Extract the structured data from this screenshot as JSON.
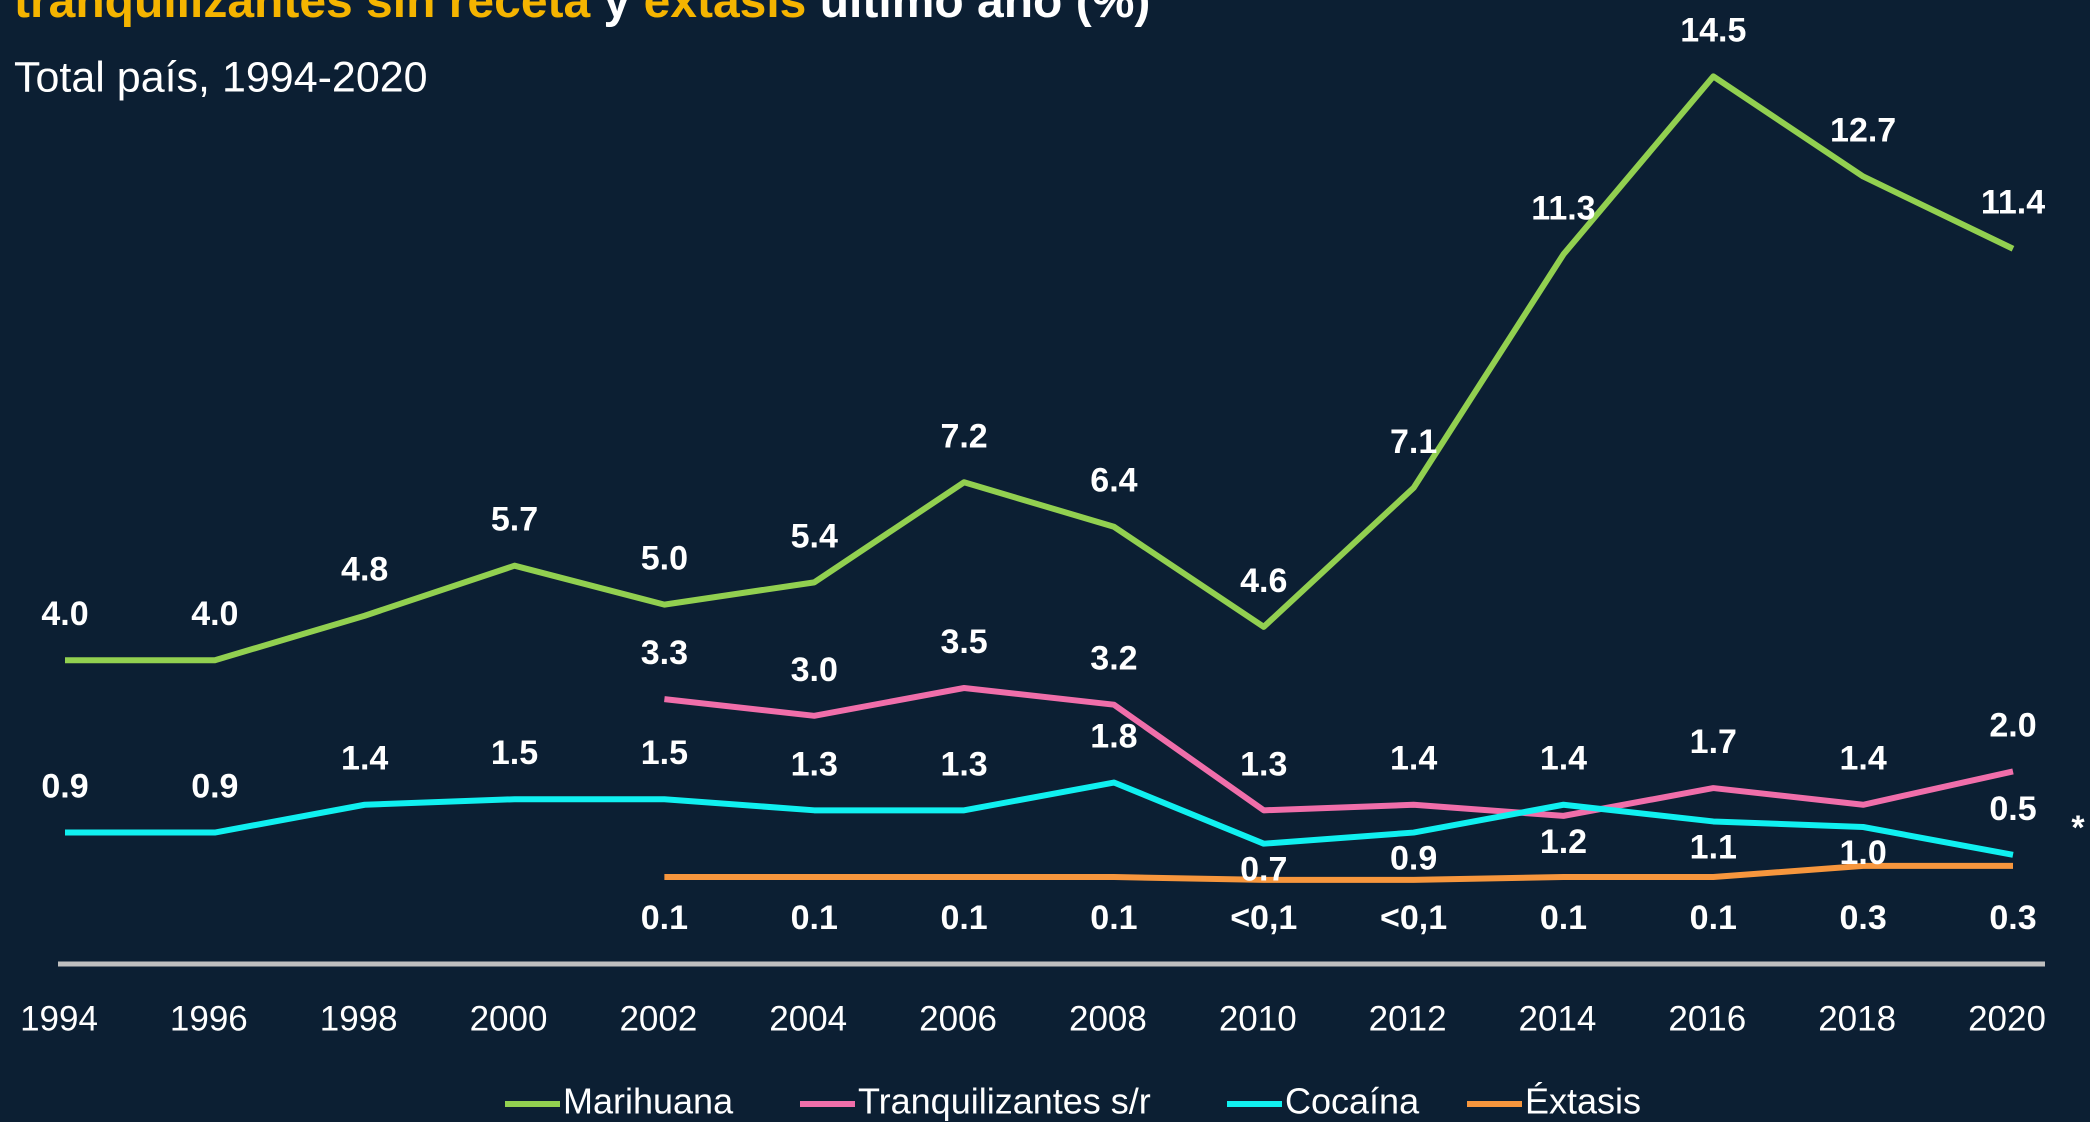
{
  "chart_data": {
    "type": "line",
    "title_parts": [
      {
        "text": "tranquilizantes sin receta",
        "color": "#f5b400"
      },
      {
        "text": "y",
        "color": "#ffffff"
      },
      {
        "text": "éxtasis",
        "color": "#f5b400"
      },
      {
        "text": "último año (%)",
        "color": "#ffffff"
      }
    ],
    "subtitle": "Total país, 1994-2020",
    "x": [
      1994,
      1996,
      1998,
      2000,
      2002,
      2004,
      2006,
      2008,
      2010,
      2012,
      2014,
      2016,
      2018,
      2020
    ],
    "xlim": [
      1994,
      2020
    ],
    "ylim": [
      -1.5,
      16
    ],
    "series": [
      {
        "name": "Marihuana",
        "color": "#92d050",
        "values": [
          4.0,
          4.0,
          4.8,
          5.7,
          5.0,
          5.4,
          7.2,
          6.4,
          4.6,
          7.1,
          11.3,
          14.5,
          12.7,
          11.4
        ],
        "value_labels": [
          "4.0",
          "4.0",
          "4.8",
          "5.7",
          "5.0",
          "5.4",
          "7.2",
          "6.4",
          "4.6",
          "7.1",
          "11.3",
          "14.5",
          "12.7",
          "11.4"
        ]
      },
      {
        "name": "Tranquilizantes s/r",
        "color": "#f06eaa",
        "values": [
          null,
          null,
          null,
          null,
          3.3,
          3.0,
          3.5,
          3.2,
          1.3,
          1.4,
          1.2,
          1.7,
          1.4,
          2.0
        ],
        "value_labels": [
          null,
          null,
          null,
          null,
          "3.3",
          "3.0",
          "3.5",
          "3.2",
          "1.3",
          "1.4",
          "1.2",
          "1.7",
          "1.4",
          "2.0"
        ]
      },
      {
        "name": "Cocaína",
        "color": "#10f0f0",
        "values": [
          0.9,
          0.9,
          1.4,
          1.5,
          1.5,
          1.3,
          1.3,
          1.8,
          0.7,
          0.9,
          1.4,
          1.1,
          1.0,
          0.5
        ],
        "value_labels": [
          "0.9",
          "0.9",
          "1.4",
          "1.5",
          "1.5",
          "1.3",
          "1.3",
          "1.8",
          "0.7",
          "0.9",
          "1.4",
          "1.1",
          "1.0",
          "0.5"
        ]
      },
      {
        "name": "Éxtasis",
        "color": "#f7963d",
        "values": [
          null,
          null,
          null,
          null,
          0.1,
          0.1,
          0.1,
          0.1,
          0.05,
          0.05,
          0.1,
          0.1,
          0.3,
          0.3
        ],
        "value_labels": [
          null,
          null,
          null,
          null,
          "0.1",
          "0.1",
          "0.1",
          "0.1",
          "<0,1",
          "<0,1",
          "0.1",
          "0.1",
          "0.3",
          "0.3"
        ]
      }
    ],
    "annotation": "*",
    "legend": "bottom"
  }
}
